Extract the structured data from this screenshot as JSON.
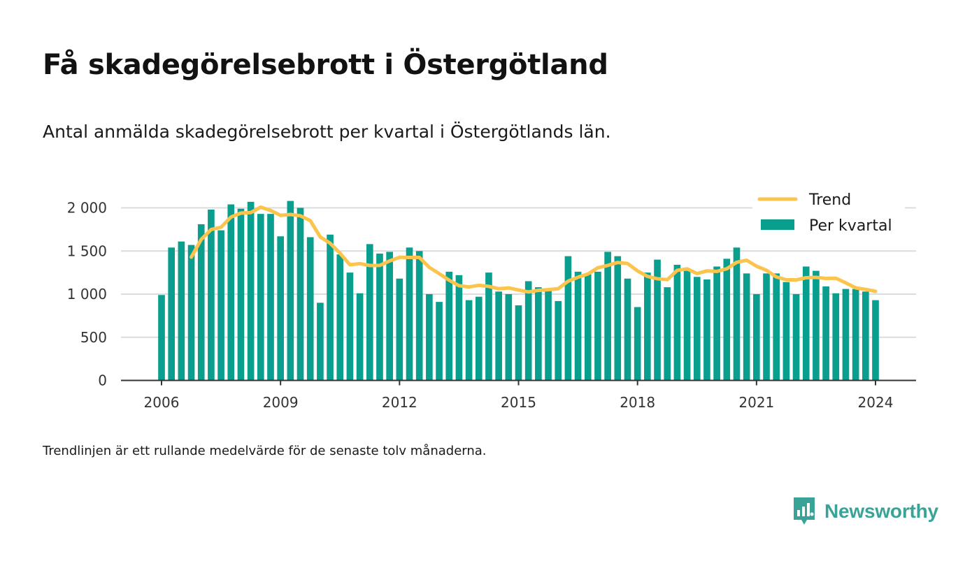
{
  "title": "Få skadegörelsebrott i Östergötland",
  "subtitle": "Antal anmälda skadegörelsebrott per kvartal i Östergötlands län.",
  "note": "Trendlinjen är ett rullande medelvärde för de senaste tolv månaderna.",
  "brand": {
    "name": "Newsworthy",
    "icon": "newsworthy-logo-icon",
    "color": "#3aa397"
  },
  "chart_data": {
    "type": "bar",
    "xlabel": "",
    "ylabel": "",
    "ylim": [
      0,
      2100
    ],
    "grid": true,
    "legend_position": "top-right",
    "y_ticks": [
      0,
      500,
      1000,
      1500,
      2000
    ],
    "y_tick_labels": [
      "0",
      "500",
      "1 000",
      "1 500",
      "2 000"
    ],
    "x_ticks": [
      2006,
      2009,
      2012,
      2015,
      2018,
      2021,
      2024
    ],
    "x_tick_labels": [
      "2006",
      "2009",
      "2012",
      "2015",
      "2018",
      "2021",
      "2024"
    ],
    "start_year": 2006,
    "series": [
      {
        "name": "Per kvartal",
        "type": "bar",
        "color": "#0a9e8e",
        "values": [
          990,
          1540,
          1610,
          1570,
          1810,
          1980,
          1740,
          2040,
          1990,
          2070,
          1930,
          1930,
          1670,
          2080,
          2000,
          1660,
          900,
          1690,
          1460,
          1250,
          1010,
          1580,
          1470,
          1490,
          1180,
          1540,
          1500,
          1000,
          910,
          1260,
          1220,
          930,
          970,
          1250,
          1030,
          1000,
          870,
          1150,
          1080,
          1060,
          920,
          1440,
          1260,
          1230,
          1260,
          1490,
          1440,
          1180,
          850,
          1250,
          1400,
          1080,
          1340,
          1270,
          1200,
          1170,
          1320,
          1410,
          1540,
          1240,
          1000,
          1240,
          1240,
          1140,
          1000,
          1320,
          1270,
          1090,
          1010,
          1060,
          1060,
          1030,
          930
        ]
      },
      {
        "name": "Trend",
        "type": "line",
        "color": "#fcc44c",
        "values": [
          null,
          null,
          null,
          1428,
          1633,
          1749,
          1776,
          1893,
          1939,
          1945,
          2008,
          1970,
          1913,
          1923,
          1908,
          1853,
          1663,
          1590,
          1474,
          1340,
          1354,
          1332,
          1333,
          1385,
          1427,
          1425,
          1425,
          1310,
          1237,
          1162,
          1098,
          1083,
          1103,
          1090,
          1062,
          1072,
          1048,
          1025,
          1044,
          1052,
          1063,
          1150,
          1196,
          1234,
          1305,
          1333,
          1367,
          1355,
          1269,
          1206,
          1178,
          1168,
          1275,
          1293,
          1238,
          1270,
          1263,
          1294,
          1369,
          1393,
          1324,
          1277,
          1199,
          1167,
          1165,
          1190,
          1194,
          1182,
          1185,
          1130,
          1073,
          1055,
          1032
        ]
      }
    ]
  }
}
